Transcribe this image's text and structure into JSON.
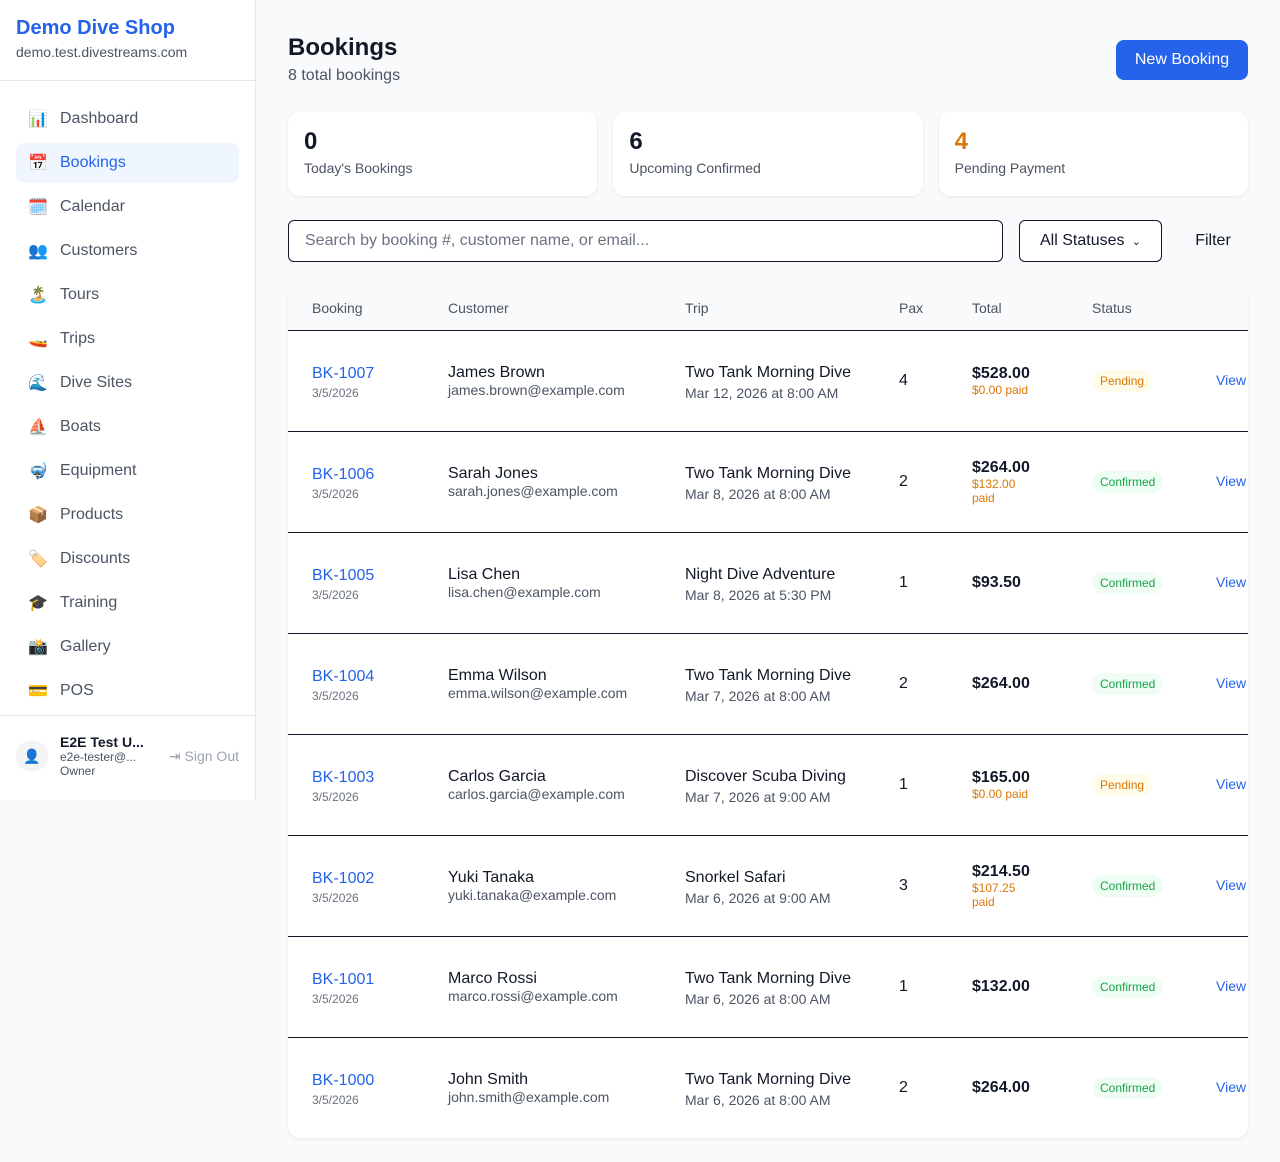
{
  "sidebar": {
    "brand": "Demo Dive Shop",
    "domain": "demo.test.divestreams.com",
    "items": [
      {
        "icon": "📊",
        "label": "Dashboard"
      },
      {
        "icon": "📅",
        "label": "Bookings",
        "active": true
      },
      {
        "icon": "🗓️",
        "label": "Calendar"
      },
      {
        "icon": "👥",
        "label": "Customers"
      },
      {
        "icon": "🏝️",
        "label": "Tours"
      },
      {
        "icon": "🚤",
        "label": "Trips"
      },
      {
        "icon": "🌊",
        "label": "Dive Sites"
      },
      {
        "icon": "⛵",
        "label": "Boats"
      },
      {
        "icon": "🤿",
        "label": "Equipment"
      },
      {
        "icon": "📦",
        "label": "Products"
      },
      {
        "icon": "🏷️",
        "label": "Discounts"
      },
      {
        "icon": "🎓",
        "label": "Training"
      },
      {
        "icon": "📸",
        "label": "Gallery"
      },
      {
        "icon": "💳",
        "label": "POS"
      }
    ],
    "user": {
      "name": "E2E Test U...",
      "email": "e2e-tester@...",
      "role": "Owner",
      "sign_out": "Sign Out"
    }
  },
  "header": {
    "title": "Bookings",
    "subtitle": "8 total bookings",
    "new_button": "New Booking"
  },
  "stats": [
    {
      "value": "0",
      "label": "Today's Bookings",
      "color": "#111827"
    },
    {
      "value": "6",
      "label": "Upcoming Confirmed",
      "color": "#111827"
    },
    {
      "value": "4",
      "label": "Pending Payment",
      "color": "#d97706"
    }
  ],
  "filters": {
    "search_placeholder": "Search by booking #, customer name, or email...",
    "status": "All Statuses",
    "filter_label": "Filter"
  },
  "table": {
    "columns": [
      "Booking",
      "Customer",
      "Trip",
      "Pax",
      "Total",
      "Status",
      ""
    ],
    "rows": [
      {
        "id": "BK-1007",
        "date": "3/5/2026",
        "name": "James Brown",
        "email": "james.brown@example.com",
        "trip": "Two Tank Morning Dive",
        "when": "Mar 12, 2026 at 8:00 AM",
        "pax": "4",
        "total": "$528.00",
        "paid": "$0.00 paid",
        "status": "Pending",
        "action": "View"
      },
      {
        "id": "BK-1006",
        "date": "3/5/2026",
        "name": "Sarah Jones",
        "email": "sarah.jones@example.com",
        "trip": "Two Tank Morning Dive",
        "when": "Mar 8, 2026 at 8:00 AM",
        "pax": "2",
        "total": "$264.00",
        "paid": "$132.00 paid",
        "status": "Confirmed",
        "action": "View"
      },
      {
        "id": "BK-1005",
        "date": "3/5/2026",
        "name": "Lisa Chen",
        "email": "lisa.chen@example.com",
        "trip": "Night Dive Adventure",
        "when": "Mar 8, 2026 at 5:30 PM",
        "pax": "1",
        "total": "$93.50",
        "paid": "",
        "status": "Confirmed",
        "action": "View"
      },
      {
        "id": "BK-1004",
        "date": "3/5/2026",
        "name": "Emma Wilson",
        "email": "emma.wilson@example.com",
        "trip": "Two Tank Morning Dive",
        "when": "Mar 7, 2026 at 8:00 AM",
        "pax": "2",
        "total": "$264.00",
        "paid": "",
        "status": "Confirmed",
        "action": "View"
      },
      {
        "id": "BK-1003",
        "date": "3/5/2026",
        "name": "Carlos Garcia",
        "email": "carlos.garcia@example.com",
        "trip": "Discover Scuba Diving",
        "when": "Mar 7, 2026 at 9:00 AM",
        "pax": "1",
        "total": "$165.00",
        "paid": "$0.00 paid",
        "status": "Pending",
        "action": "View"
      },
      {
        "id": "BK-1002",
        "date": "3/5/2026",
        "name": "Yuki Tanaka",
        "email": "yuki.tanaka@example.com",
        "trip": "Snorkel Safari",
        "when": "Mar 6, 2026 at 9:00 AM",
        "pax": "3",
        "total": "$214.50",
        "paid": "$107.25 paid",
        "status": "Confirmed",
        "action": "View"
      },
      {
        "id": "BK-1001",
        "date": "3/5/2026",
        "name": "Marco Rossi",
        "email": "marco.rossi@example.com",
        "trip": "Two Tank Morning Dive",
        "when": "Mar 6, 2026 at 8:00 AM",
        "pax": "1",
        "total": "$132.00",
        "paid": "",
        "status": "Confirmed",
        "action": "View"
      },
      {
        "id": "BK-1000",
        "date": "3/5/2026",
        "name": "John Smith",
        "email": "john.smith@example.com",
        "trip": "Two Tank Morning Dive",
        "when": "Mar 6, 2026 at 8:00 AM",
        "pax": "2",
        "total": "$264.00",
        "paid": "",
        "status": "Confirmed",
        "action": "View"
      }
    ]
  }
}
